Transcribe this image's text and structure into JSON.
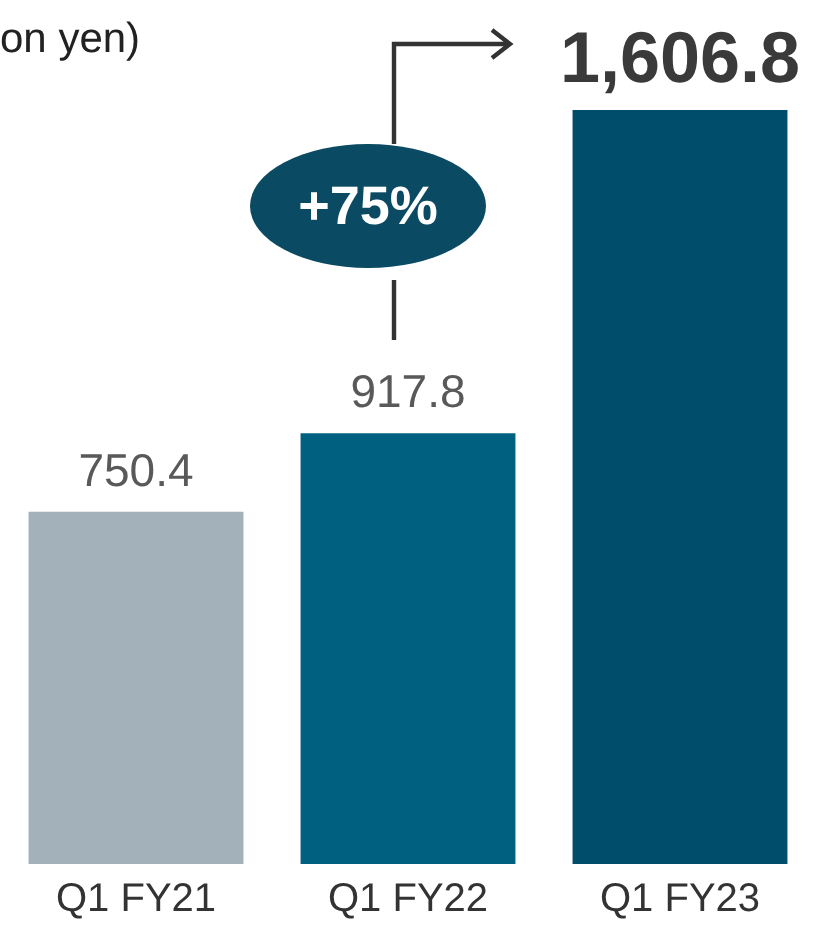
{
  "chart_data": {
    "type": "bar",
    "title": "on yen)",
    "categories": [
      "Q1 FY21",
      "Q1 FY22",
      "Q1 FY23"
    ],
    "values": [
      750.4,
      917.8,
      1606.8
    ],
    "colors": [
      "#a3b1bb",
      "#00607f",
      "#004d6b"
    ],
    "value_labels": [
      "750.4",
      "917.8",
      "1,606.8"
    ],
    "grid": false,
    "legend": false,
    "annotations": [
      "+75%"
    ]
  }
}
